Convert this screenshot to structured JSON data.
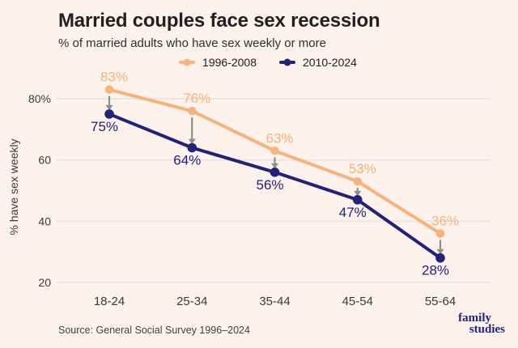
{
  "header": {
    "title": "Married couples face sex recession",
    "subtitle": "% of married adults who have sex weekly or more"
  },
  "footer": {
    "source": "Source: General Social Survey 1996–2024",
    "logo_line1": "family",
    "logo_line2": "studies"
  },
  "colors": {
    "background": "#fdf3ec",
    "title_text": "#212121",
    "subtitle_text": "#2e2e2e",
    "axis_text": "#3a3a3a",
    "gridline": "#e6e2e1",
    "arrow": "#8d8d8d",
    "legend_text": "#1d1d1d",
    "source_text": "#414141",
    "logo_navy": "#23237a"
  },
  "chart_data": {
    "type": "line",
    "title": "Married couples face sex recession",
    "subtitle": "% of married adults who have sex weekly or more",
    "categories": [
      "18-24",
      "25-34",
      "35-44",
      "45-54",
      "55-64"
    ],
    "series": [
      {
        "name": "1996-2008",
        "color": "#f6b37c",
        "values": [
          83,
          76,
          63,
          53,
          36
        ],
        "label_position": "above"
      },
      {
        "name": "2010-2024",
        "color": "#22227a",
        "values": [
          75,
          64,
          56,
          47,
          28
        ],
        "label_position": "below"
      }
    ],
    "xlabel": "",
    "ylabel": "% have sex weekly",
    "yticks": [
      {
        "value": 80,
        "label": "80%"
      },
      {
        "value": 60,
        "label": "60"
      },
      {
        "value": 40,
        "label": "40"
      },
      {
        "value": 20,
        "label": "20"
      }
    ],
    "ylim": [
      20,
      80
    ],
    "grid": "horizontal",
    "legend_position": "top-center",
    "annotations": "gray downward arrows from each 1996-2008 point to the 2010-2024 point in the same age group",
    "value_label_format": "{value}%"
  }
}
